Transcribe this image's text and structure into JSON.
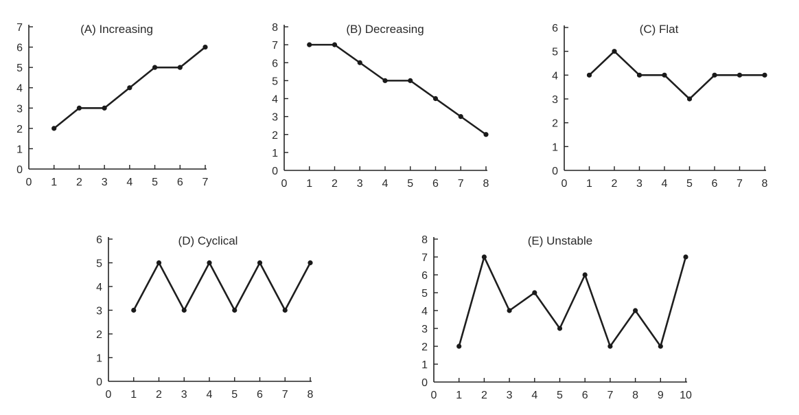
{
  "page": {
    "background": "#ffffff",
    "ink_color": "#222222"
  },
  "chart_data": [
    {
      "type": "line",
      "title": "(A) Increasing",
      "xlabel": "",
      "ylabel": "",
      "xlim": [
        0,
        7
      ],
      "ylim": [
        0,
        7
      ],
      "x_ticks": [
        0,
        1,
        2,
        3,
        4,
        5,
        6,
        7
      ],
      "y_ticks": [
        0,
        1,
        2,
        3,
        4,
        5,
        6,
        7
      ],
      "grid": false,
      "legend": "none",
      "x": [
        1,
        2,
        3,
        4,
        5,
        6,
        7
      ],
      "series": [
        {
          "values": [
            2,
            3,
            3,
            4,
            5,
            5,
            6
          ]
        }
      ]
    },
    {
      "type": "line",
      "title": "(B) Decreasing",
      "xlabel": "",
      "ylabel": "",
      "xlim": [
        0,
        8
      ],
      "ylim": [
        0,
        8
      ],
      "x_ticks": [
        0,
        1,
        2,
        3,
        4,
        5,
        6,
        7,
        8
      ],
      "y_ticks": [
        0,
        1,
        2,
        3,
        4,
        5,
        6,
        7,
        8
      ],
      "grid": false,
      "legend": "none",
      "x": [
        1,
        2,
        3,
        4,
        5,
        6,
        7,
        8
      ],
      "series": [
        {
          "values": [
            7,
            7,
            6,
            5,
            5,
            4,
            3,
            2
          ]
        }
      ]
    },
    {
      "type": "line",
      "title": "(C) Flat",
      "xlabel": "",
      "ylabel": "",
      "xlim": [
        0,
        8
      ],
      "ylim": [
        0,
        6
      ],
      "x_ticks": [
        0,
        1,
        2,
        3,
        4,
        5,
        6,
        7,
        8
      ],
      "y_ticks": [
        0,
        1,
        2,
        3,
        4,
        5,
        6
      ],
      "grid": false,
      "legend": "none",
      "x": [
        1,
        2,
        3,
        4,
        5,
        6,
        7,
        8
      ],
      "series": [
        {
          "values": [
            4,
            5,
            4,
            4,
            3,
            4,
            4,
            4
          ]
        }
      ]
    },
    {
      "type": "line",
      "title": "(D) Cyclical",
      "xlabel": "",
      "ylabel": "",
      "xlim": [
        0,
        8
      ],
      "ylim": [
        0,
        6
      ],
      "x_ticks": [
        0,
        1,
        2,
        3,
        4,
        5,
        6,
        7,
        8
      ],
      "y_ticks": [
        0,
        1,
        2,
        3,
        4,
        5,
        6
      ],
      "grid": false,
      "legend": "none",
      "x": [
        1,
        2,
        3,
        4,
        5,
        6,
        7,
        8
      ],
      "series": [
        {
          "values": [
            3,
            5,
            3,
            5,
            3,
            5,
            3,
            5
          ]
        }
      ]
    },
    {
      "type": "line",
      "title": "(E) Unstable",
      "xlabel": "",
      "ylabel": "",
      "xlim": [
        0,
        10
      ],
      "ylim": [
        0,
        8
      ],
      "x_ticks": [
        0,
        1,
        2,
        3,
        4,
        5,
        6,
        7,
        8,
        9,
        10
      ],
      "y_ticks": [
        0,
        1,
        2,
        3,
        4,
        5,
        6,
        7,
        8
      ],
      "grid": false,
      "legend": "none",
      "x": [
        1,
        2,
        3,
        4,
        5,
        6,
        7,
        8,
        9,
        10
      ],
      "series": [
        {
          "values": [
            2,
            7,
            4,
            5,
            3,
            6,
            2,
            4,
            2,
            7
          ]
        }
      ]
    }
  ]
}
